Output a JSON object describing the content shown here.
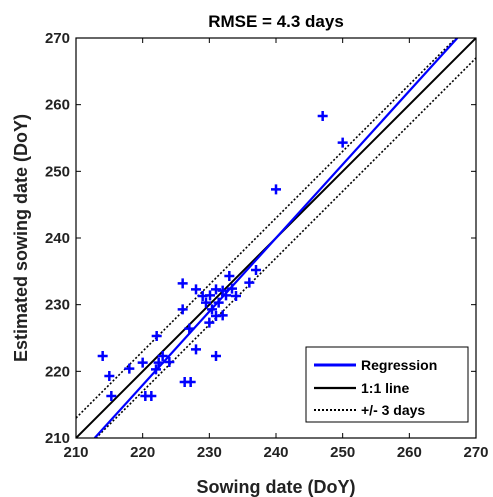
{
  "chart_data": {
    "type": "scatter",
    "title": "RMSE = 4.3 days",
    "xlabel": "Sowing date (DoY)",
    "ylabel": "Estimated sowing date (DoY)",
    "xlim": [
      210,
      270
    ],
    "ylim": [
      210,
      270
    ],
    "xticks": [
      "210",
      "220",
      "230",
      "240",
      "250",
      "260",
      "270"
    ],
    "yticks": [
      "210",
      "220",
      "230",
      "240",
      "250",
      "260",
      "270"
    ],
    "grid": false,
    "legend_position": "bottom-right",
    "marker": "plus",
    "colors": {
      "points": "#0000ff",
      "regression": "#0000ff",
      "identity": "#000000",
      "band": "#000000"
    },
    "points": [
      [
        214,
        222.3
      ],
      [
        215,
        219.3
      ],
      [
        215.3,
        216.3
      ],
      [
        218,
        220.4
      ],
      [
        220,
        221.3
      ],
      [
        220.4,
        216.3
      ],
      [
        221.3,
        216.3
      ],
      [
        222,
        220.3
      ],
      [
        222.1,
        225.3
      ],
      [
        222.4,
        221.3
      ],
      [
        223,
        222.3
      ],
      [
        224,
        221.4
      ],
      [
        226,
        233.2
      ],
      [
        226,
        229.3
      ],
      [
        226.3,
        218.4
      ],
      [
        227,
        226.4
      ],
      [
        227.2,
        218.4
      ],
      [
        228,
        232.3
      ],
      [
        228,
        223.3
      ],
      [
        229,
        231.3
      ],
      [
        229.5,
        230.3
      ],
      [
        230,
        227.3
      ],
      [
        230.1,
        231.4
      ],
      [
        230.4,
        229.3
      ],
      [
        231,
        232.3
      ],
      [
        231,
        228.3
      ],
      [
        231,
        222.3
      ],
      [
        231.4,
        230.3
      ],
      [
        232,
        232.1
      ],
      [
        232,
        228.4
      ],
      [
        232.5,
        231.4
      ],
      [
        233,
        234.3
      ],
      [
        233.4,
        232.4
      ],
      [
        234,
        231.3
      ],
      [
        236,
        233.3
      ],
      [
        237,
        235.2
      ],
      [
        240,
        247.3
      ],
      [
        247,
        258.3
      ],
      [
        250,
        254.3
      ]
    ],
    "lines": [
      {
        "name": "Regression",
        "style": "solid",
        "color": "#0000ff",
        "x": [
          212.8,
          267.2
        ],
        "y": [
          210,
          270
        ]
      },
      {
        "name": "1:1 line",
        "style": "solid",
        "color": "#000000",
        "x": [
          210,
          270
        ],
        "y": [
          210,
          270
        ]
      },
      {
        "name": "+/- 3 days",
        "style": "dotted",
        "color": "#000000",
        "offset": 3
      }
    ],
    "legend": [
      "Regression",
      "1:1 line",
      "+/- 3 days"
    ]
  }
}
